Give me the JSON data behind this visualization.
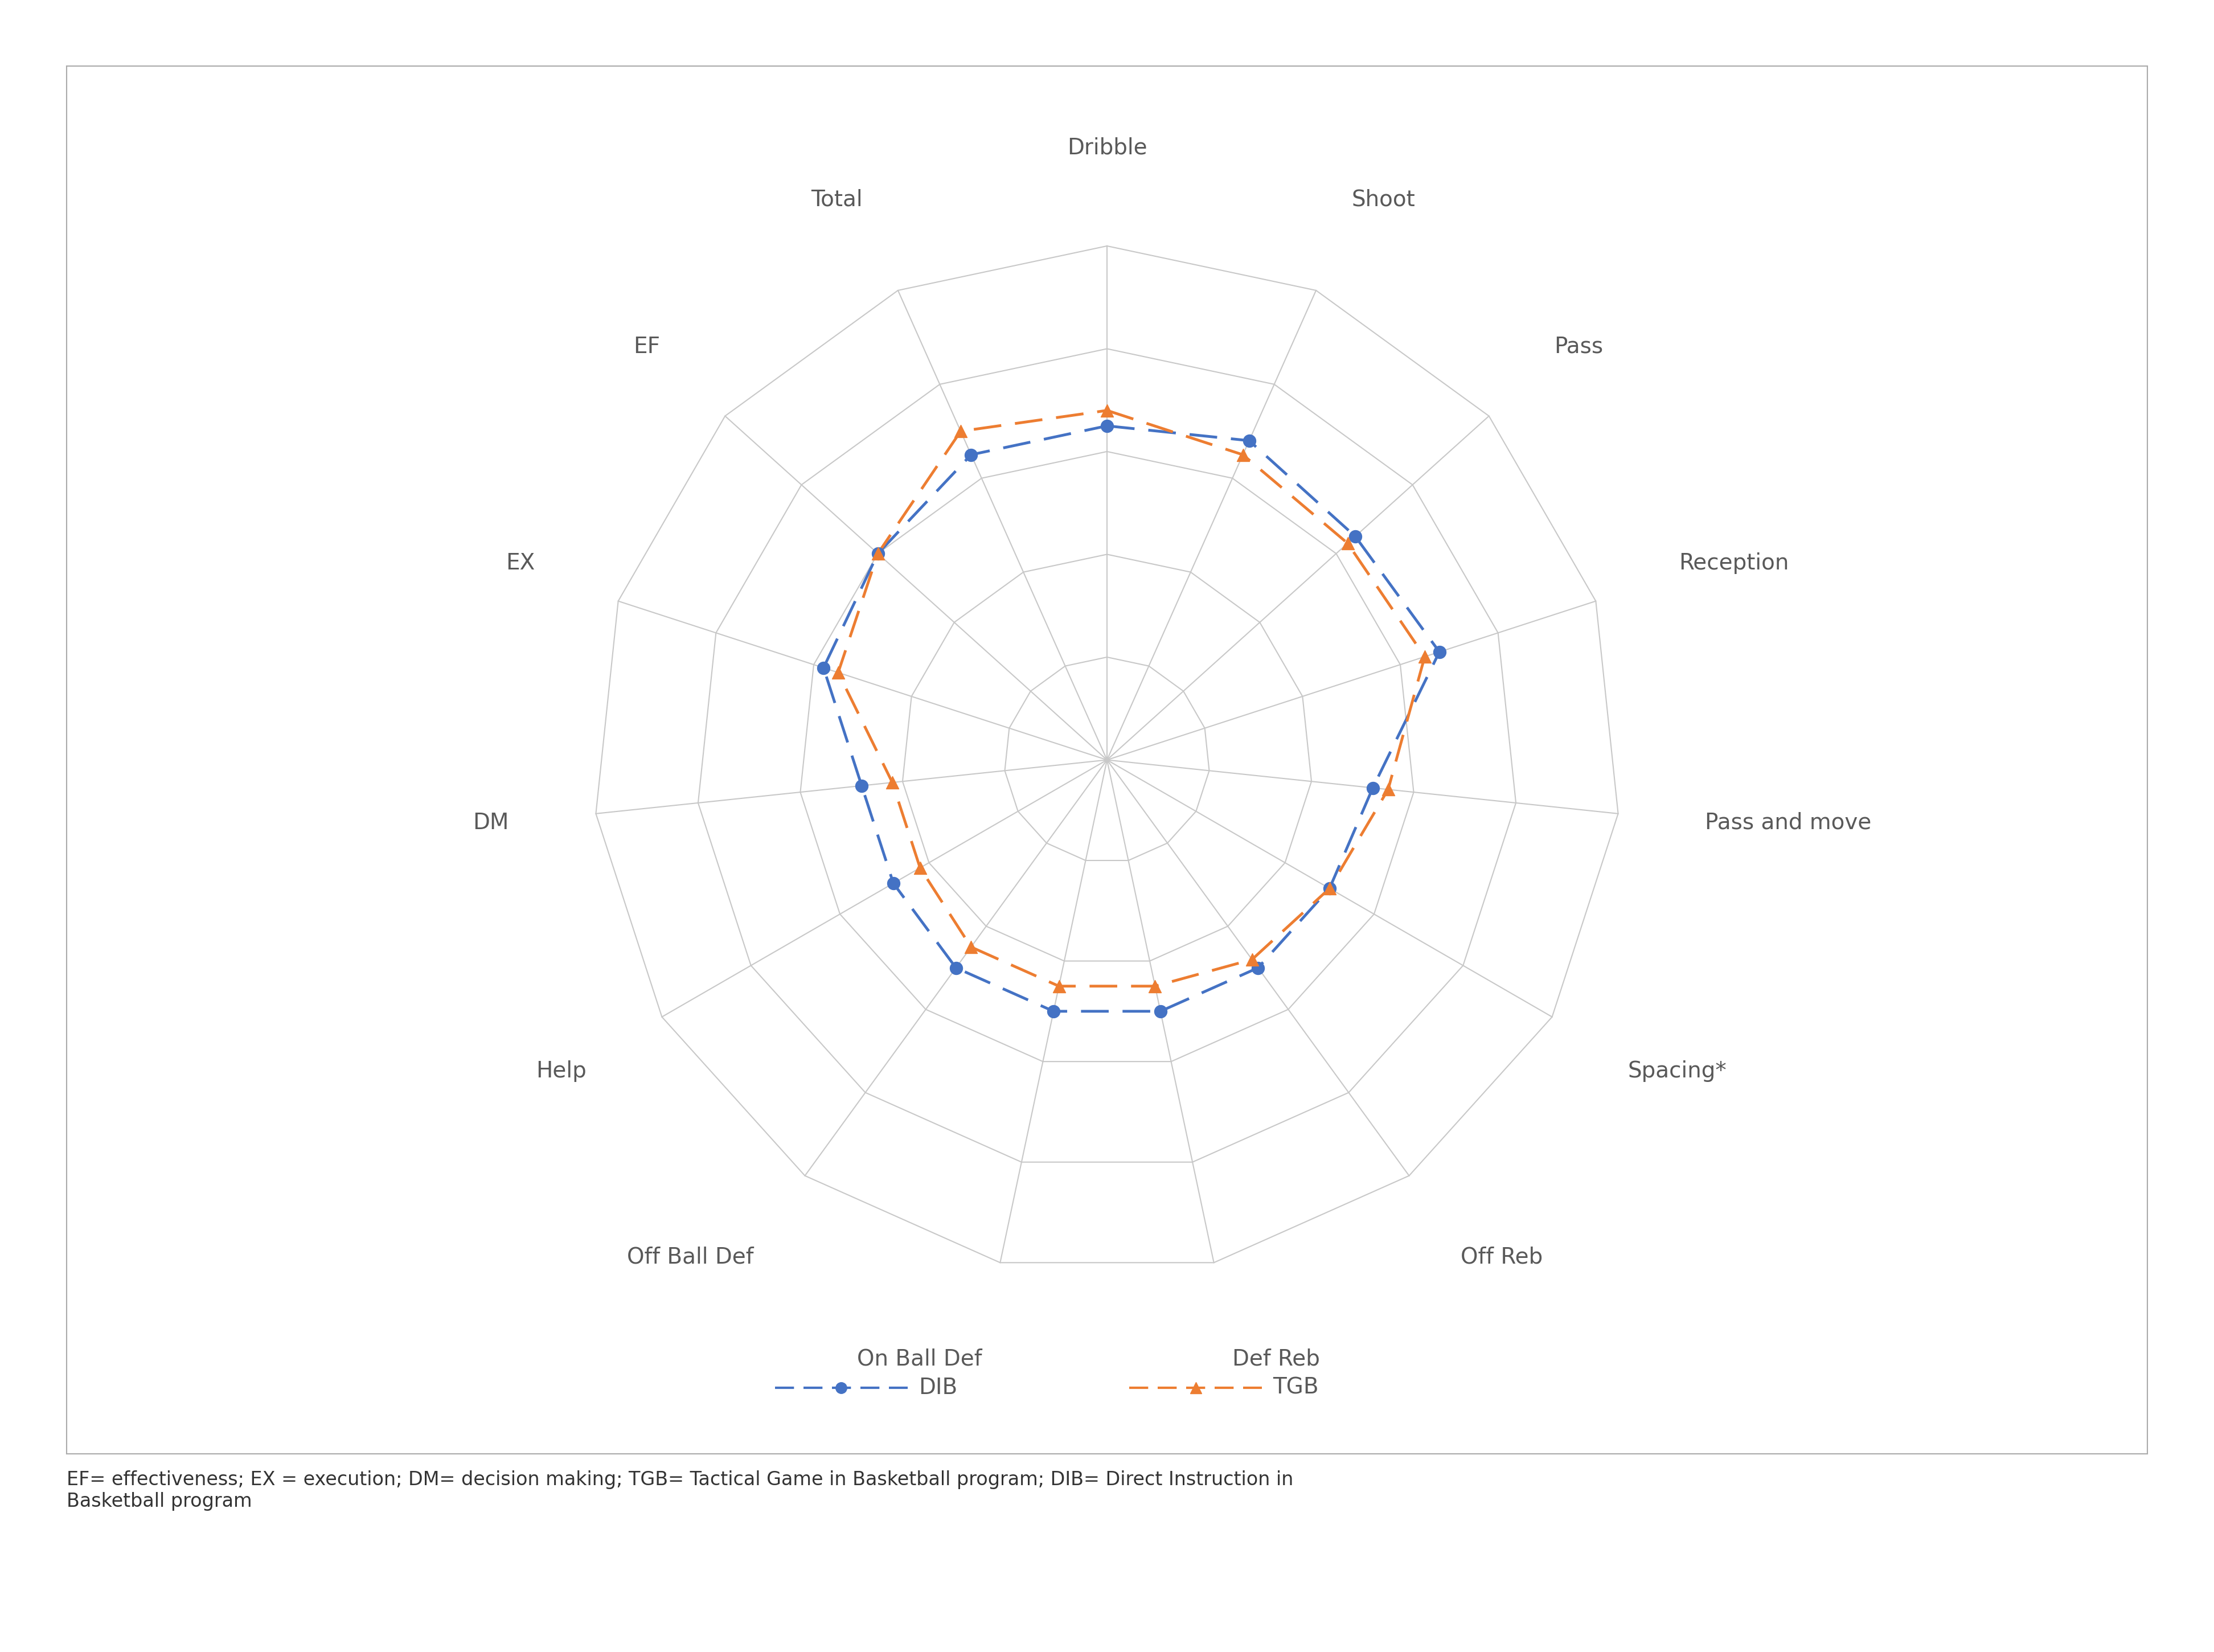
{
  "categories": [
    "Dribble",
    "Shoot",
    "Pass",
    "Reception",
    "Pass and move",
    "Spacing*",
    "Off Reb",
    "Def Reb",
    "On Ball Def",
    "Off Ball Def",
    "Help",
    "DM",
    "EX",
    "EF",
    "Total"
  ],
  "DIB": [
    6.5,
    6.8,
    6.5,
    6.8,
    5.2,
    5.0,
    5.0,
    5.0,
    5.0,
    5.0,
    4.8,
    4.8,
    5.8,
    6.0,
    6.5
  ],
  "TGB": [
    6.8,
    6.5,
    6.3,
    6.5,
    5.5,
    5.0,
    4.8,
    4.5,
    4.5,
    4.5,
    4.2,
    4.2,
    5.5,
    6.0,
    7.0
  ],
  "max_val": 10,
  "num_rings": 5,
  "DIB_color": "#4472C4",
  "TGB_color": "#ED7D31",
  "grid_color": "#C8C8C8",
  "bg_color": "#FFFFFF",
  "label_color": "#595959",
  "label_fontsize": 28,
  "legend_fontsize": 28,
  "caption": "EF= effectiveness; EX = execution; DM= decision making; TGB= Tactical Game in Basketball program; DIB= Direct Instruction in\nBasketball program",
  "caption_fontsize": 24
}
